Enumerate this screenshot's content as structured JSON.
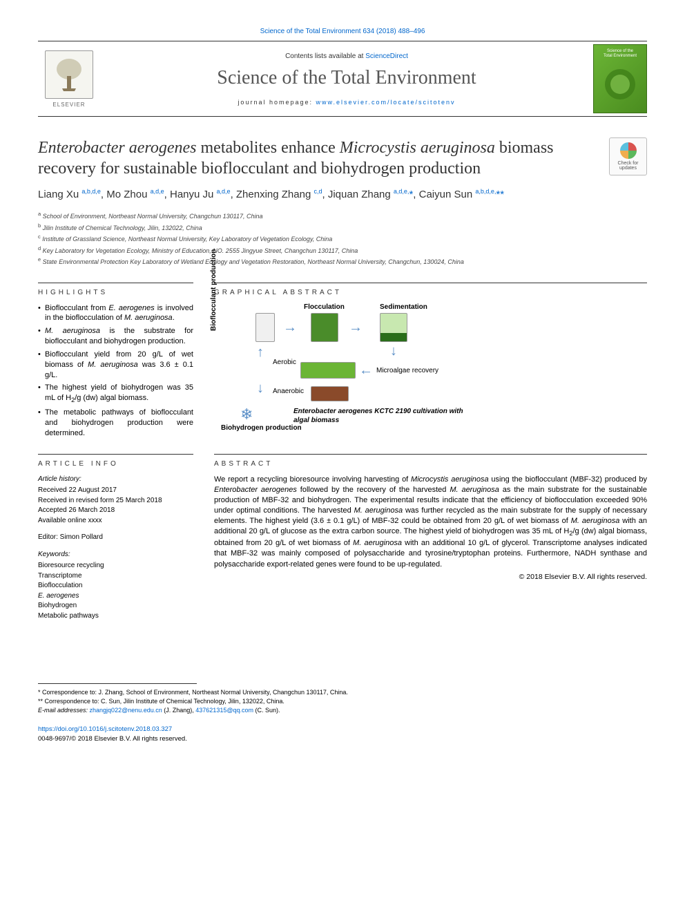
{
  "citation": {
    "text": "Science of the Total Environment 634 (2018) 488–496"
  },
  "banner": {
    "publisher": "ELSEVIER",
    "sd_prefix": "Contents lists available at ",
    "sd_link": "ScienceDirect",
    "journal_name": "Science of the Total Environment",
    "homepage_prefix": "journal homepage: ",
    "homepage_url": "www.elsevier.com/locate/scitotenv",
    "cover_title1": "Science of the",
    "cover_title2": "Total Environment"
  },
  "check_updates": {
    "line1": "Check for",
    "line2": "updates"
  },
  "title_html": "<em>Enterobacter aerogenes</em> metabolites enhance <em>Microcystis aeruginosa</em> biomass recovery for sustainable bioflocculant and biohydrogen production",
  "authors_html": "Liang Xu <sup>a,b,d,e</sup>, Mo Zhou <sup>a,d,e</sup>, Hanyu Ju <sup>a,d,e</sup>, Zhenxing Zhang <sup>c,d</sup>, Jiquan Zhang <sup>a,d,e,</sup><span class='star'>*</span>, Caiyun Sun <sup>a,b,d,e,</sup><span class='star'>**</span>",
  "affiliations": [
    {
      "sup": "a",
      "text": "School of Environment, Northeast Normal University, Changchun 130117, China"
    },
    {
      "sup": "b",
      "text": "Jilin Institute of Chemical Technology, Jilin, 132022, China"
    },
    {
      "sup": "c",
      "text": "Institute of Grassland Science, Northeast Normal University, Key Laboratory of Vegetation Ecology, China"
    },
    {
      "sup": "d",
      "text": "Key Laboratory for Vegetation Ecology, Ministry of Education, NO. 2555 Jingyue Street, Changchun 130117, China"
    },
    {
      "sup": "e",
      "text": "State Environmental Protection Key Laboratory of Wetland Ecology and Vegetation Restoration, Northeast Normal University, Changchun, 130024, China"
    }
  ],
  "highlights": {
    "heading": "HIGHLIGHTS",
    "items_html": [
      "Bioflocculant from <em>E. aerogenes</em> is involved in the bioflocculation of <em>M. aeruginosa</em>.",
      "<em>M. aeruginosa</em> is the substrate for bioflocculant and biohydrogen production.",
      "Bioflocculant yield from 20 g/L of wet biomass of <em>M. aeruginosa</em> was 3.6 ± 0.1 g/L.",
      "The highest yield of biohydrogen was 35 mL of H<sub>2</sub>/g (dw) algal biomass.",
      "The metabolic pathways of bioflocculant and biohydrogen production were determined."
    ]
  },
  "graphical": {
    "heading": "GRAPHICAL ABSTRACT",
    "labels": {
      "bioflocculant_prod": "Bioflocculant production",
      "flocculation": "Flocculation",
      "sedimentation": "Sedimentation",
      "aerobic": "Aerobic",
      "anaerobic": "Anaerobic",
      "microalgae_recovery": "Microalgae recovery",
      "biohydrogen": "Biohydrogen production",
      "cultivation": "Enterobacter aerogenes KCTC 2190 cultivation with algal biomass"
    },
    "arrow_color": "#5b8fc7",
    "beaker_green": "#6bb535",
    "beaker_dark": "#2a6e88"
  },
  "article_info": {
    "heading": "ARTICLE INFO",
    "history": {
      "heading": "Article history:",
      "received": "Received 22 August 2017",
      "revised": "Received in revised form 25 March 2018",
      "accepted": "Accepted 26 March 2018",
      "online": "Available online xxxx"
    },
    "editor_label": "Editor: Simon Pollard",
    "keywords_heading": "Keywords:",
    "keywords": [
      "Bioresource recycling",
      "Transcriptome",
      "Bioflocculation",
      "E. aerogenes",
      "Biohydrogen",
      "Metabolic pathways"
    ]
  },
  "abstract": {
    "heading": "ABSTRACT",
    "text_html": "We report a recycling bioresource involving harvesting of <em>Microcystis aeruginosa</em> using the bioflocculant (MBF-32) produced by <em>Enterobacter aerogenes</em> followed by the recovery of the harvested <em>M. aeruginosa</em> as the main substrate for the sustainable production of MBF-32 and biohydrogen. The experimental results indicate that the efficiency of bioflocculation exceeded 90% under optimal conditions. The harvested <em>M. aeruginosa</em> was further recycled as the main substrate for the supply of necessary elements. The highest yield (3.6 ± 0.1 g/L) of MBF-32 could be obtained from 20 g/L of wet biomass of <em>M. aeruginosa</em> with an additional 20 g/L of glucose as the extra carbon source. The highest yield of biohydrogen was 35 mL of H<sub>2</sub>/g (dw) algal biomass, obtained from 20 g/L of wet biomass of <em>M. aeruginosa</em> with an additional 10 g/L of glycerol. Transcriptome analyses indicated that MBF-32 was mainly composed of polysaccharide and tyrosine/tryptophan proteins. Furthermore, NADH synthase and polysaccharide export-related genes were found to be up-regulated.",
    "copyright": "© 2018 Elsevier B.V. All rights reserved."
  },
  "correspondence": {
    "lines": [
      "* Correspondence to: J. Zhang, School of Environment, Northeast Normal University, Changchun 130117, China.",
      "** Correspondence to: C. Sun, Jilin Institute of Chemical Technology, Jilin, 132022, China."
    ],
    "email_prefix": "E-mail addresses: ",
    "email1": "zhangjq022@nenu.edu.cn",
    "email1_name": " (J. Zhang), ",
    "email2": "437621315@qq.com",
    "email2_name": " (C. Sun)."
  },
  "footer": {
    "doi": "https://doi.org/10.1016/j.scitotenv.2018.03.327",
    "issn_line": "0048-9697/© 2018 Elsevier B.V. All rights reserved."
  }
}
